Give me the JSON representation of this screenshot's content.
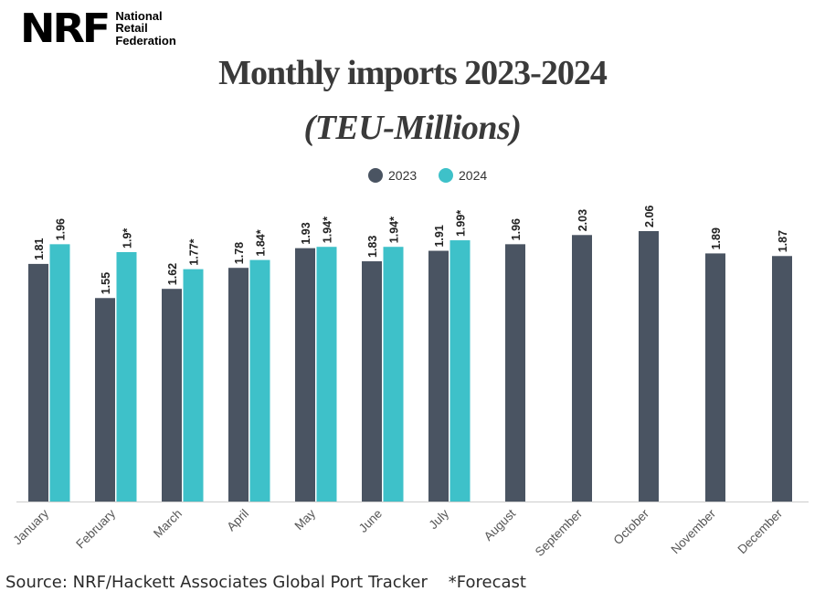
{
  "brand": {
    "logo_mark": "NRF",
    "logo_line1": "National",
    "logo_line2": "Retail",
    "logo_line3": "Federation"
  },
  "source_text": "Source: NRF/Hackett Associates Global Port Tracker    *Forecast",
  "colors": {
    "series_2023": "#4a5462",
    "series_2024": "#3ec1c9"
  },
  "chart_data": {
    "type": "bar",
    "title": "Monthly imports 2023-2024",
    "subtitle": "(TEU-Millions)",
    "legend_position": "top-center",
    "categories": [
      "January",
      "February",
      "March",
      "April",
      "May",
      "June",
      "July",
      "August",
      "September",
      "October",
      "November",
      "December"
    ],
    "series": [
      {
        "name": "2023",
        "values": [
          1.81,
          1.55,
          1.62,
          1.78,
          1.93,
          1.83,
          1.91,
          1.96,
          2.03,
          2.06,
          1.89,
          1.87
        ],
        "labels": [
          "1.81",
          "1.55",
          "1.62",
          "1.78",
          "1.93",
          "1.83",
          "1.91",
          "1.96",
          "2.03",
          "2.06",
          "1.89",
          "1.87"
        ]
      },
      {
        "name": "2024",
        "values": [
          1.96,
          1.9,
          1.77,
          1.84,
          1.94,
          1.94,
          1.99,
          null,
          null,
          null,
          null,
          null
        ],
        "labels": [
          "1.96",
          "1.9*",
          "1.77*",
          "1.84*",
          "1.94*",
          "1.94*",
          "1.99*",
          null,
          null,
          null,
          null,
          null
        ]
      }
    ],
    "ylim": [
      0,
      2.1
    ],
    "grid": false
  }
}
